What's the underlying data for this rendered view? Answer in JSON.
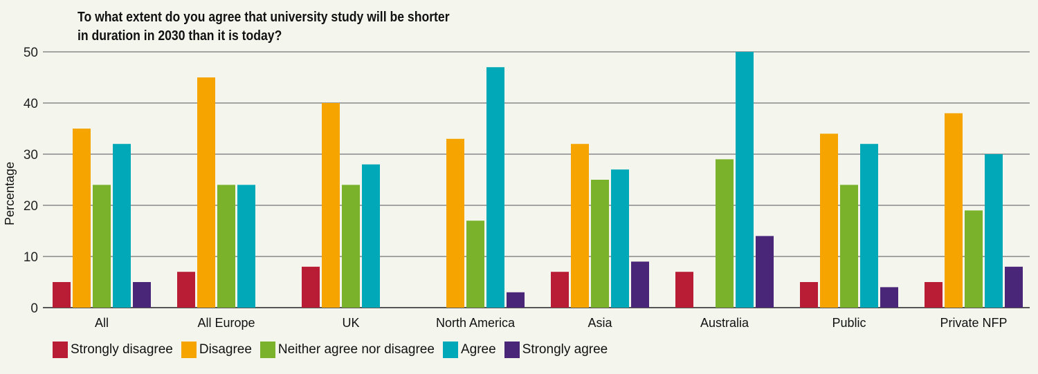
{
  "chart_data": {
    "type": "bar",
    "title": "To what extent do you agree that university study will be shorter in duration in 2030 than it is today?",
    "xlabel": "",
    "ylabel": "Percentage",
    "ylim": [
      0,
      50
    ],
    "yticks": [
      0,
      10,
      20,
      30,
      40,
      50
    ],
    "grid": true,
    "legend_position": "bottom",
    "categories": [
      "All",
      "All Europe",
      "UK",
      "North America",
      "Asia",
      "Australia",
      "Public",
      "Private NFP"
    ],
    "series": [
      {
        "name": "Strongly disagree",
        "color": "#b91d35",
        "values": [
          5,
          7,
          8,
          0,
          7,
          7,
          5,
          5
        ]
      },
      {
        "name": "Disagree",
        "color": "#f6a500",
        "values": [
          35,
          45,
          40,
          33,
          32,
          0,
          34,
          38
        ]
      },
      {
        "name": "Neither agree nor disagree",
        "color": "#7ab22c",
        "values": [
          24,
          24,
          24,
          17,
          25,
          29,
          24,
          19
        ]
      },
      {
        "name": "Agree",
        "color": "#00a8b8",
        "values": [
          32,
          24,
          28,
          47,
          27,
          50,
          32,
          30
        ]
      },
      {
        "name": "Strongly agree",
        "color": "#4a2679",
        "values": [
          5,
          0,
          0,
          3,
          9,
          14,
          4,
          8
        ]
      }
    ]
  }
}
